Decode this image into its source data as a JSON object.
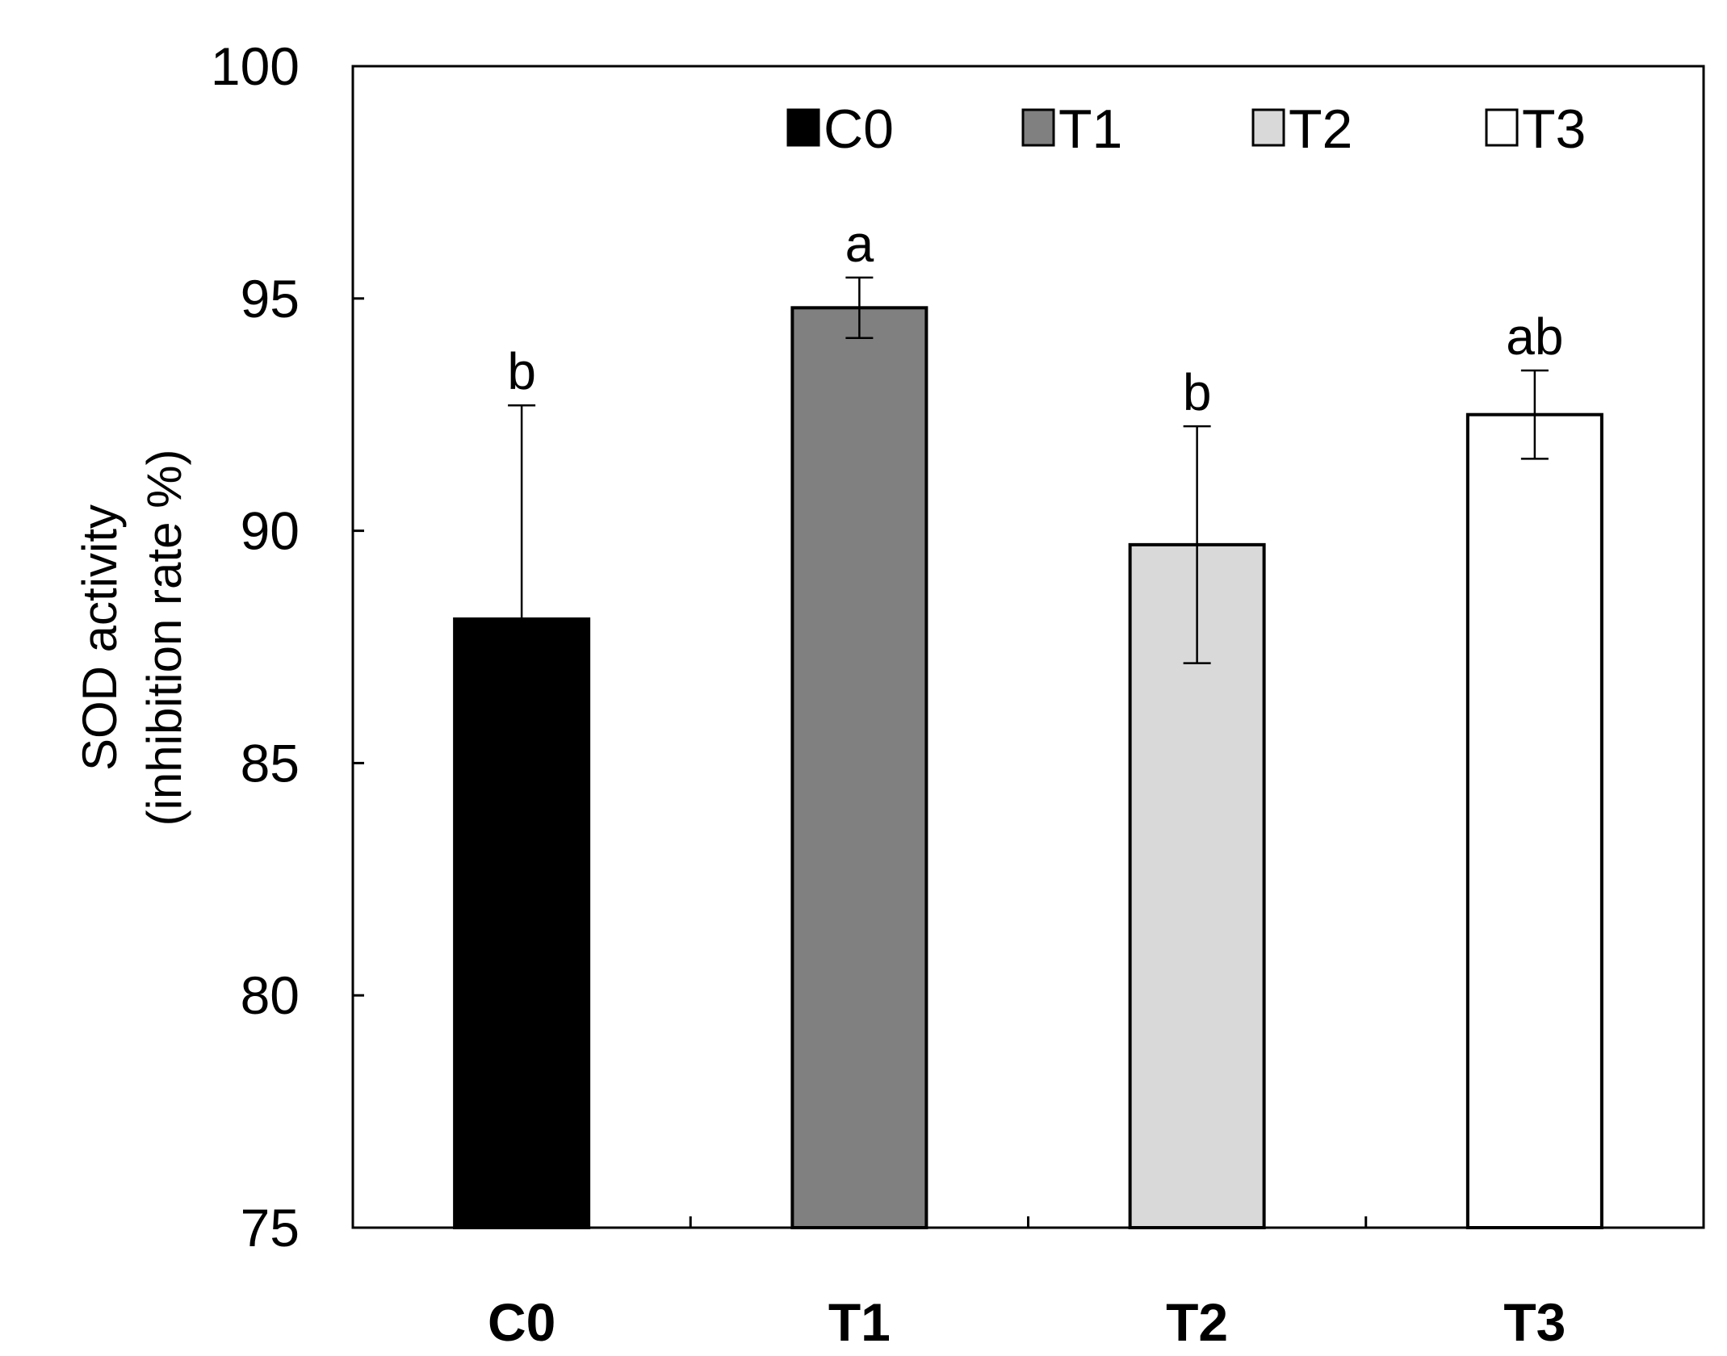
{
  "chart_data": {
    "type": "bar",
    "title": "",
    "xlabel": "",
    "ylabel": "SOD activity",
    "ylabel_line2": "(inhibition rate %)",
    "ylim": [
      75,
      100
    ],
    "yticks": [
      75,
      80,
      85,
      90,
      95,
      100
    ],
    "grid": false,
    "legend_position": "top-right",
    "categories": [
      "C0",
      "T1",
      "T2",
      "T3"
    ],
    "values": [
      88.1,
      94.8,
      89.7,
      92.5
    ],
    "errors": [
      4.6,
      0.65,
      2.55,
      0.95
    ],
    "significance": [
      "b",
      "a",
      "b",
      "ab"
    ],
    "series_colors": [
      "#000000",
      "#808080",
      "#d9d9d9",
      "#ffffff"
    ],
    "legend": [
      "C0",
      "T1",
      "T2",
      "T3"
    ]
  }
}
